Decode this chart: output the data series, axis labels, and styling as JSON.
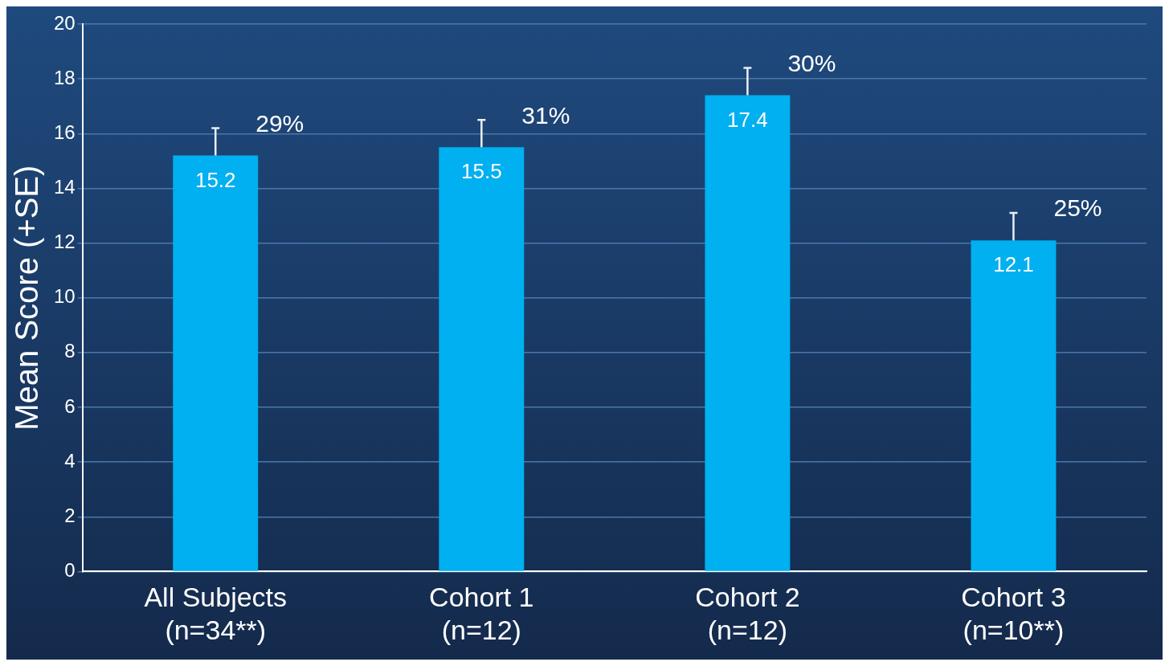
{
  "chart_data": {
    "type": "bar",
    "ylabel": "Mean Score (+SE)",
    "categories": [
      "All Subjects\n(n=34**)",
      "Cohort 1\n(n=12)",
      "Cohort 2\n(n=12)",
      "Cohort 3\n(n=10**)"
    ],
    "values": [
      15.2,
      15.5,
      17.4,
      12.1
    ],
    "errors": [
      [
        15.2,
        16.2
      ],
      [
        15.5,
        16.5
      ],
      [
        17.4,
        18.4
      ],
      [
        12.1,
        13.1
      ]
    ],
    "color": "#00b0f0",
    "data_labels": true,
    "annotations": [
      {
        "text": "29%",
        "x": "All Subjects\n(n=34**)",
        "y": 16.2
      },
      {
        "text": "31%",
        "x": "Cohort 1\n(n=12)",
        "y": 16.5
      },
      {
        "text": "30%",
        "x": "Cohort 2\n(n=12)",
        "y": 18.4
      },
      {
        "text": "25%",
        "x": "Cohort 3\n(n=10**)",
        "y": 13.1
      }
    ],
    "ylim": [
      0,
      20
    ],
    "yticks": [
      0,
      2,
      4,
      6,
      8,
      10,
      12,
      14,
      16,
      18,
      20
    ],
    "grid": "y",
    "legend": false
  }
}
